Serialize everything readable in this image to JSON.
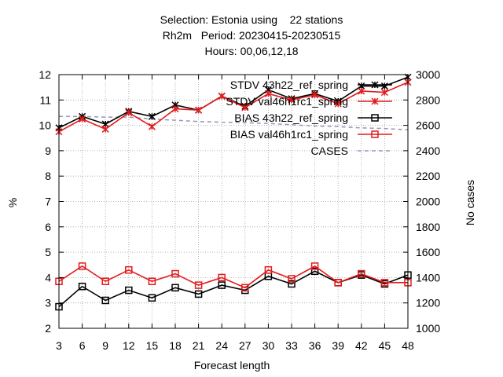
{
  "title": {
    "line1": "Selection: Estonia using    22 stations",
    "line2": "Rh2m   Period: 20230415-20230515",
    "line3": "Hours: 00,06,12,18"
  },
  "chart_data": {
    "type": "line",
    "title": "Selection: Estonia using 22 stations / Rh2m Period: 20230415-20230515 / Hours: 00,06,12,18",
    "xlabel": "Forecast length",
    "ylabel": "%",
    "y2label": "No cases",
    "x": [
      3,
      6,
      9,
      12,
      15,
      18,
      21,
      24,
      27,
      30,
      33,
      36,
      39,
      42,
      45,
      48
    ],
    "xticks": [
      "3",
      "6",
      "9",
      "12",
      "15",
      "18",
      "21",
      "24",
      "27",
      "30",
      "33",
      "36",
      "39",
      "42",
      "45",
      "48"
    ],
    "xlim": [
      3,
      48
    ],
    "ylim": [
      2,
      12
    ],
    "yticks": [
      "2",
      "3",
      "4",
      "5",
      "6",
      "7",
      "8",
      "9",
      "10",
      "11",
      "12"
    ],
    "y2lim": [
      1000,
      3000
    ],
    "y2ticks": [
      "1000",
      "1200",
      "1400",
      "1600",
      "1800",
      "2000",
      "2200",
      "2400",
      "2600",
      "2800",
      "3000"
    ],
    "grid": true,
    "legend_position": "top-right",
    "series": [
      {
        "name": "STDV 43h22_ref_spring",
        "legend_text": "STDV 43h22_ref_spring",
        "axis": "y1",
        "color": "#000000",
        "marker": "star",
        "values": [
          9.9,
          10.35,
          10.05,
          10.55,
          10.35,
          10.8,
          10.6,
          11.15,
          10.75,
          11.4,
          11.05,
          11.25,
          10.95,
          11.55,
          11.55,
          11.9
        ]
      },
      {
        "name": "STDV val46h1rc1_spring",
        "legend_text": "STDV val46h1rc1_spring",
        "axis": "y1",
        "color": "#e41a1c",
        "marker": "star",
        "values": [
          9.75,
          10.25,
          9.85,
          10.5,
          9.95,
          10.65,
          10.6,
          11.15,
          10.7,
          11.25,
          11.0,
          11.2,
          10.85,
          11.35,
          11.3,
          11.7
        ]
      },
      {
        "name": "BIAS 43h22_ref_spring",
        "legend_text": "BIAS 43h22_ref_spring",
        "axis": "y1",
        "color": "#000000",
        "marker": "square",
        "values": [
          2.85,
          3.65,
          3.1,
          3.5,
          3.2,
          3.6,
          3.35,
          3.7,
          3.5,
          4.05,
          3.75,
          4.25,
          3.8,
          4.1,
          3.75,
          4.1
        ]
      },
      {
        "name": "BIAS val46h1rc1_spring",
        "legend_text": "BIAS val46h1rc1_spring",
        "axis": "y1",
        "color": "#e41a1c",
        "marker": "square",
        "values": [
          3.85,
          4.45,
          3.85,
          4.3,
          3.85,
          4.15,
          3.7,
          4.0,
          3.6,
          4.3,
          3.95,
          4.45,
          3.8,
          4.15,
          3.8,
          3.8
        ]
      },
      {
        "name": "CASES",
        "legend_text": "CASES",
        "axis": "y2",
        "color": "#9a93b5",
        "dashed": true,
        "values": [
          2670,
          2670,
          2665,
          2665,
          2650,
          2640,
          2630,
          2625,
          2620,
          2615,
          2605,
          2595,
          2590,
          2580,
          2575,
          2565
        ]
      }
    ]
  }
}
